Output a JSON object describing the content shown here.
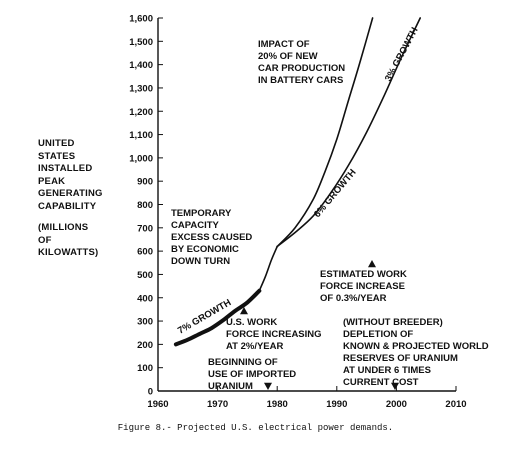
{
  "chart_data": {
    "type": "line",
    "ylabel_lines": [
      "UNITED",
      "STATES",
      "INSTALLED",
      "PEAK",
      "GENERATING",
      "CAPABILITY"
    ],
    "yunits_lines": [
      "(MILLIONS",
      "OF",
      "KILOWATTS)"
    ],
    "xlim": [
      1960,
      2010
    ],
    "ylim": [
      0,
      1600
    ],
    "xticks": [
      1960,
      1970,
      1980,
      1990,
      2000,
      2010
    ],
    "xtick_labels": [
      "1960",
      "1970",
      "1980",
      "1990",
      "2000",
      "2010"
    ],
    "yticks": [
      0,
      100,
      200,
      300,
      400,
      500,
      600,
      700,
      800,
      900,
      1000,
      1100,
      1200,
      1300,
      1400,
      1500,
      1600
    ],
    "ytick_labels": [
      "0",
      "100",
      "200",
      "300",
      "400",
      "500",
      "600",
      "700",
      "800",
      "900",
      "1,000",
      "1,100",
      "1,200",
      "1,300",
      "1,400",
      "1,500",
      "1,600"
    ],
    "series": [
      {
        "name": "7% GROWTH",
        "x": [
          1963,
          1965,
          1967,
          1969,
          1971,
          1973,
          1975,
          1977
        ],
        "y": [
          200,
          220,
          245,
          270,
          305,
          345,
          380,
          430
        ]
      },
      {
        "name": "",
        "x": [
          1977,
          1978,
          1979,
          1980
        ],
        "y": [
          430,
          490,
          560,
          620
        ]
      },
      {
        "name": "6% GROWTH",
        "x": [
          1980,
          1983,
          1986,
          1989,
          1992,
          1995,
          1998,
          2001,
          2004
        ],
        "y": [
          620,
          680,
          750,
          850,
          970,
          1110,
          1270,
          1440,
          1600
        ]
      },
      {
        "name": "",
        "x": [
          1980,
          1983,
          1986,
          1988,
          1990,
          1992,
          1994,
          1996
        ],
        "y": [
          620,
          700,
          820,
          940,
          1080,
          1250,
          1420,
          1600
        ]
      }
    ],
    "annotations": [
      {
        "text": [
          "IMPACT OF",
          "20% OF NEW",
          "CAR PRODUCTION",
          "IN BATTERY CARS"
        ]
      },
      {
        "text": [
          "3% GROWTH"
        ]
      },
      {
        "text": [
          "6% GROWTH"
        ]
      },
      {
        "text": [
          "TEMPORARY",
          "CAPACITY",
          "EXCESS CAUSED",
          "BY ECONOMIC",
          "DOWN TURN"
        ]
      },
      {
        "text": [
          "ESTIMATED WORK",
          "FORCE INCREASE",
          "OF 0.3%/YEAR"
        ]
      },
      {
        "text": [
          "7% GROWTH"
        ]
      },
      {
        "text": [
          "U.S. WORK",
          "FORCE INCREASING",
          "AT 2%/YEAR"
        ]
      },
      {
        "text": [
          "(WITHOUT BREEDER)",
          "DEPLETION OF",
          "KNOWN & PROJECTED WORLD",
          "RESERVES OF URANIUM",
          "AT UNDER 6 TIMES",
          "CURRENT COST"
        ]
      },
      {
        "text": [
          "BEGINNING OF",
          "USE OF IMPORTED",
          "URANIUM"
        ]
      }
    ],
    "grid": false
  },
  "caption": "Figure 8.- Projected U.S. electrical power demands."
}
